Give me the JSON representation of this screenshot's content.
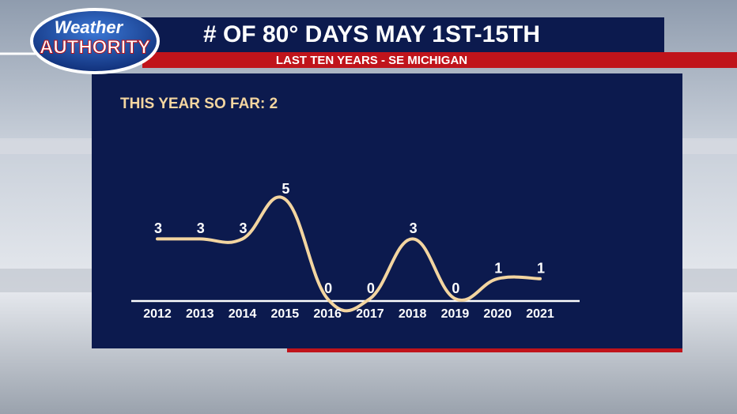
{
  "logo": {
    "line1": "Weather",
    "line2": "AUTHORITY"
  },
  "chart_data": {
    "type": "line",
    "title": "# OF 80° DAYS MAY 1ST-15TH",
    "subtitle": "LAST TEN YEARS - SE MICHIGAN",
    "annotation": "THIS YEAR SO FAR: 2",
    "categories": [
      "2012",
      "2013",
      "2014",
      "2015",
      "2016",
      "2017",
      "2018",
      "2019",
      "2020",
      "2021"
    ],
    "values": [
      3,
      3,
      3,
      5,
      0,
      0,
      3,
      0,
      1,
      1
    ],
    "color": "#f3d5a0"
  }
}
